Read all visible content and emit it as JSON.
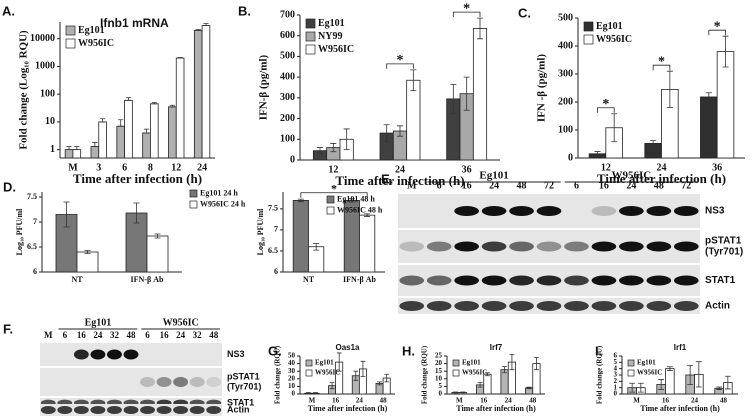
{
  "chart_data": [
    {
      "type": "bar",
      "label": "A.",
      "title": "Ifnb1 mRNA",
      "ylabel": "Fold change (Log₁₀ RQU)",
      "xlabel": "Time after infection (h)",
      "categories": [
        "M",
        "3",
        "6",
        "8",
        "12",
        "24"
      ],
      "log_scale": true,
      "ylim": [
        0.5,
        40000
      ],
      "yticks": [
        1,
        10,
        100,
        1000,
        10000
      ],
      "legend": "upper left",
      "series": [
        {
          "name": "Eg101",
          "color": "#b0b0b0",
          "values": [
            1,
            1.3,
            7,
            4,
            35,
            20000
          ],
          "errors": [
            0.3,
            0.5,
            5,
            1.5,
            5,
            1500
          ]
        },
        {
          "name": "W956IC",
          "color": "#ffffff",
          "values": [
            1,
            10,
            60,
            45,
            2000,
            30000
          ],
          "errors": [
            0.3,
            3,
            15,
            5,
            100,
            5000
          ]
        }
      ]
    },
    {
      "type": "bar",
      "label": "B.",
      "ylabel": "IFN-β (pg/ml)",
      "xlabel": "Time after infection (h)",
      "categories": [
        "12",
        "24",
        "36"
      ],
      "ylim": [
        0,
        700
      ],
      "yticks": [
        0,
        100,
        200,
        300,
        400,
        500,
        600,
        700
      ],
      "legend": "upper left",
      "series": [
        {
          "name": "Eg101",
          "color": "#404040",
          "values": [
            45,
            130,
            295
          ],
          "errors": [
            15,
            40,
            70
          ]
        },
        {
          "name": "NY99",
          "color": "#a8a8a8",
          "values": [
            60,
            140,
            320
          ],
          "errors": [
            20,
            25,
            80
          ]
        },
        {
          "name": "W956IC",
          "color": "#ffffff",
          "values": [
            100,
            385,
            635
          ],
          "errors": [
            50,
            50,
            50
          ]
        }
      ],
      "significance": [
        {
          "text": "*",
          "categories": [
            1
          ]
        },
        {
          "text": "*",
          "categories": [
            2
          ]
        }
      ]
    },
    {
      "type": "bar",
      "label": "C.",
      "ylabel": "IFN -β (pg/ml)",
      "xlabel": "Time after infection (h)",
      "categories": [
        "12",
        "24",
        "36"
      ],
      "ylim": [
        0,
        500
      ],
      "yticks": [
        0,
        100,
        200,
        300,
        400,
        500
      ],
      "legend": "upper left",
      "series": [
        {
          "name": "Eg101",
          "color": "#303030",
          "values": [
            15,
            52,
            218
          ],
          "errors": [
            8,
            10,
            15
          ]
        },
        {
          "name": "W956IC",
          "color": "#ffffff",
          "values": [
            108,
            245,
            380
          ],
          "errors": [
            50,
            65,
            55
          ]
        }
      ],
      "significance": [
        {
          "text": "*",
          "categories": [
            0
          ]
        },
        {
          "text": "*",
          "categories": [
            1
          ]
        },
        {
          "text": "*",
          "categories": [
            2
          ]
        }
      ]
    },
    {
      "type": "bar",
      "label": "D.",
      "ylabel": "Log₁₀ PFU/ml",
      "categories": [
        "NT",
        "IFN-β Ab"
      ],
      "ylim": [
        6,
        7.6
      ],
      "yticks": [
        6,
        6.5,
        7,
        7.5
      ],
      "legend": "outside right",
      "series": [
        {
          "name": "Eg101 24 h",
          "color": "#777777",
          "values": [
            7.15,
            7.18
          ],
          "errors": [
            0.25,
            0.2
          ]
        },
        {
          "name": "W956IC 24 h",
          "color": "#ffffff",
          "values": [
            6.4,
            6.72
          ],
          "errors": [
            0.03,
            0.04
          ]
        }
      ]
    },
    {
      "type": "bar",
      "ylabel": "Log₁₀ PFU/ml",
      "categories": [
        "NT",
        "IFN-β Ab"
      ],
      "ylim": [
        6,
        7.9
      ],
      "yticks": [
        6,
        6.5,
        7,
        7.5
      ],
      "legend": "upper right",
      "series": [
        {
          "name": "Eg101 48 h",
          "color": "#777777",
          "values": [
            7.7,
            7.7
          ],
          "errors": [
            0.03,
            0.04
          ]
        },
        {
          "name": "W956IC 48 h",
          "color": "#ffffff",
          "values": [
            6.6,
            7.35
          ],
          "errors": [
            0.08,
            0.03
          ]
        }
      ],
      "significance": [
        {
          "text": "*",
          "categories": [
            0,
            1
          ]
        }
      ]
    },
    {
      "type": "bar",
      "label": "G.",
      "title": "Oas1a",
      "ylabel": "Fold change (RQU)",
      "xlabel": "Time after infection (h)",
      "categories": [
        "M",
        "16",
        "24",
        "48"
      ],
      "ylim": [
        0,
        50
      ],
      "yticks": [
        0,
        10,
        20,
        30,
        40,
        50
      ],
      "legend": "upper left",
      "series": [
        {
          "name": "Eg101",
          "color": "#b5b5b5",
          "values": [
            1,
            11,
            24,
            14
          ],
          "errors": [
            1,
            4,
            6,
            2
          ]
        },
        {
          "name": "W956IC",
          "color": "#ffffff",
          "values": [
            1,
            42,
            33,
            21
          ],
          "errors": [
            1,
            12,
            10,
            5
          ]
        }
      ]
    },
    {
      "type": "bar",
      "label": "H.",
      "title": "Irf7",
      "ylabel": "Fold change (RQU)",
      "xlabel": "Time after infection (h)",
      "categories": [
        "M",
        "16",
        "24",
        "48"
      ],
      "ylim": [
        0,
        25
      ],
      "yticks": [
        0,
        5,
        10,
        15,
        20,
        25
      ],
      "legend": "upper left",
      "series": [
        {
          "name": "Eg101",
          "color": "#b5b5b5",
          "values": [
            1,
            6,
            16,
            4
          ],
          "errors": [
            0.3,
            1.5,
            2,
            0.5
          ]
        },
        {
          "name": "W956IC",
          "color": "#ffffff",
          "values": [
            1,
            13,
            21,
            20
          ],
          "errors": [
            0.3,
            1,
            5,
            4
          ]
        }
      ]
    },
    {
      "type": "bar",
      "label": "I.",
      "title": "Irf1",
      "ylabel": "Fold change (RQU)",
      "xlabel": "Time after infection (h)",
      "categories": [
        "M",
        "16",
        "24",
        "48"
      ],
      "ylim": [
        0,
        6
      ],
      "yticks": [
        0,
        1,
        2,
        3,
        4,
        5,
        6
      ],
      "legend": "upper left",
      "series": [
        {
          "name": "Eg101",
          "color": "#b5b5b5",
          "values": [
            1,
            1.5,
            3,
            0.9
          ],
          "errors": [
            0.7,
            0.8,
            1.5,
            0.2
          ]
        },
        {
          "name": "W956IC",
          "color": "#ffffff",
          "values": [
            1,
            4,
            3.1,
            1.8
          ],
          "errors": [
            0.7,
            0.3,
            2,
            1
          ]
        }
      ]
    }
  ],
  "blots": [
    {
      "label": "E.",
      "groups": [
        "Eg101",
        "W956IC"
      ],
      "lanes": [
        "M",
        "6",
        "16",
        "24",
        "48",
        "72",
        "6",
        "16",
        "24",
        "48",
        "72"
      ],
      "rows": [
        [
          "NS3"
        ],
        [
          "pSTAT1",
          "(Tyr701)"
        ],
        [
          "STAT1"
        ],
        [
          "Actin"
        ]
      ]
    },
    {
      "label": "F.",
      "groups": [
        "Eg101",
        "W956IC"
      ],
      "lanes": [
        "M",
        "6",
        "16",
        "24",
        "32",
        "48",
        "6",
        "16",
        "24",
        "32",
        "48"
      ],
      "rows": [
        [
          "NS3"
        ],
        [
          "pSTAT1",
          "(Tyr701)"
        ],
        [
          "STAT1"
        ],
        [
          "Actin"
        ]
      ]
    }
  ]
}
